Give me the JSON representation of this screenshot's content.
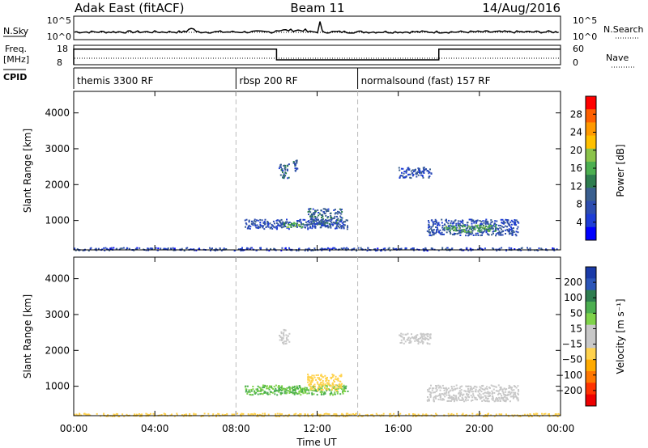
{
  "header": {
    "station": "Adak East (fitACF)",
    "beam": "Beam 11",
    "date": "14/Aug/2016"
  },
  "top_panels": {
    "nsky_label": "N.Sky",
    "nsky_ticks": [
      "10^5",
      "10^0"
    ],
    "nsearch_label": "N.Search",
    "nsearch_ticks": [
      "10^5",
      "10^0"
    ],
    "freq_label": "Freq.",
    "freq_unit": "[MHz]",
    "freq_ticks": [
      "18",
      "8"
    ],
    "nave_label": "Nave",
    "nave_ticks": [
      "60",
      "0"
    ],
    "cpid_label": "CPID",
    "cpid_segments": [
      {
        "label": "themis 3300 RF",
        "start_hour": 0
      },
      {
        "label": "rbsp 200 RF",
        "start_hour": 8
      },
      {
        "label": "normalsound (fast) 157 RF",
        "start_hour": 14
      }
    ],
    "freq_steps": [
      {
        "from_hour": 0,
        "to_hour": 10,
        "freq_mhz": 16
      },
      {
        "from_hour": 10,
        "to_hour": 18,
        "freq_mhz": 10.5
      },
      {
        "from_hour": 18,
        "to_hour": 24,
        "freq_mhz": 16
      }
    ]
  },
  "axes": {
    "ylabel": "Slant Range [km]",
    "yticks": [
      "4000",
      "3000",
      "2000",
      "1000"
    ],
    "xlabel": "Time UT",
    "xticks": [
      "00:00",
      "04:00",
      "08:00",
      "12:00",
      "16:00",
      "20:00",
      "00:00"
    ]
  },
  "power_colorbar": {
    "label": "Power [dB]",
    "ticks": [
      "28",
      "24",
      "20",
      "16",
      "12",
      "8",
      "4"
    ],
    "colors": [
      "#ff0000",
      "#ff6000",
      "#ff9900",
      "#ffc000",
      "#8bc34a",
      "#4caf50",
      "#2e7d4f",
      "#3a5f8f",
      "#2d4db0",
      "#1e3dd6",
      "#0000ff"
    ]
  },
  "velocity_colorbar": {
    "label": "Velocity [m s⁻¹]",
    "ticks": [
      "200",
      "100",
      "50",
      "15",
      "−15",
      "−50",
      "−100",
      "−200"
    ],
    "colors": [
      "#1a3aa8",
      "#2b55b8",
      "#2e7d4f",
      "#4caf50",
      "#7fd34a",
      "#c8c8c8",
      "#c8c8c8",
      "#ffd24d",
      "#ffaa00",
      "#ff7700",
      "#ff3300",
      "#ee0000"
    ]
  },
  "chart_data": [
    {
      "type": "heatmap",
      "title": "Power",
      "xlabel": "Time UT",
      "ylabel": "Slant Range [km]",
      "xlim": [
        0,
        24
      ],
      "ylim": [
        180,
        4600
      ],
      "colorbar_label": "Power [dB]",
      "patches": [
        {
          "t0": 8.4,
          "t1": 13.5,
          "r0": 780,
          "r1": 1050,
          "value": 6
        },
        {
          "t0": 10.3,
          "t1": 11.3,
          "r0": 820,
          "r1": 960,
          "value": 14
        },
        {
          "t0": 11.5,
          "t1": 13.2,
          "r0": 900,
          "r1": 1350,
          "value": 8
        },
        {
          "t0": 17.4,
          "t1": 21.9,
          "r0": 600,
          "r1": 1050,
          "value": 6
        },
        {
          "t0": 18.2,
          "t1": 20.8,
          "r0": 700,
          "r1": 900,
          "value": 14
        },
        {
          "t0": 10.1,
          "t1": 10.6,
          "r0": 2200,
          "r1": 2600,
          "value": 8
        },
        {
          "t0": 10.8,
          "t1": 11.0,
          "r0": 2400,
          "r1": 2700,
          "value": 8
        },
        {
          "t0": 16.0,
          "t1": 17.6,
          "r0": 2200,
          "r1": 2500,
          "value": 6
        },
        {
          "t0": 0.0,
          "t1": 24.0,
          "r0": 180,
          "r1": 260,
          "value": 5
        }
      ]
    },
    {
      "type": "heatmap",
      "title": "Velocity",
      "xlabel": "Time UT",
      "ylabel": "Slant Range [km]",
      "xlim": [
        0,
        24
      ],
      "ylim": [
        180,
        4600
      ],
      "colorbar_label": "Velocity [m s⁻¹]",
      "patches": [
        {
          "t0": 8.4,
          "t1": 13.5,
          "r0": 780,
          "r1": 1050,
          "value": 30
        },
        {
          "t0": 10.0,
          "t1": 11.5,
          "r0": 820,
          "r1": 1000,
          "value": 30
        },
        {
          "t0": 11.5,
          "t1": 13.2,
          "r0": 900,
          "r1": 1350,
          "value": -30
        },
        {
          "t0": 17.4,
          "t1": 21.9,
          "r0": 600,
          "r1": 1050,
          "value": 0
        },
        {
          "t0": 10.1,
          "t1": 10.6,
          "r0": 2200,
          "r1": 2600,
          "value": 0
        },
        {
          "t0": 16.0,
          "t1": 17.6,
          "r0": 2200,
          "r1": 2500,
          "value": 0
        },
        {
          "t0": 0.0,
          "t1": 24.0,
          "r0": 180,
          "r1": 260,
          "value": -30
        }
      ]
    }
  ]
}
